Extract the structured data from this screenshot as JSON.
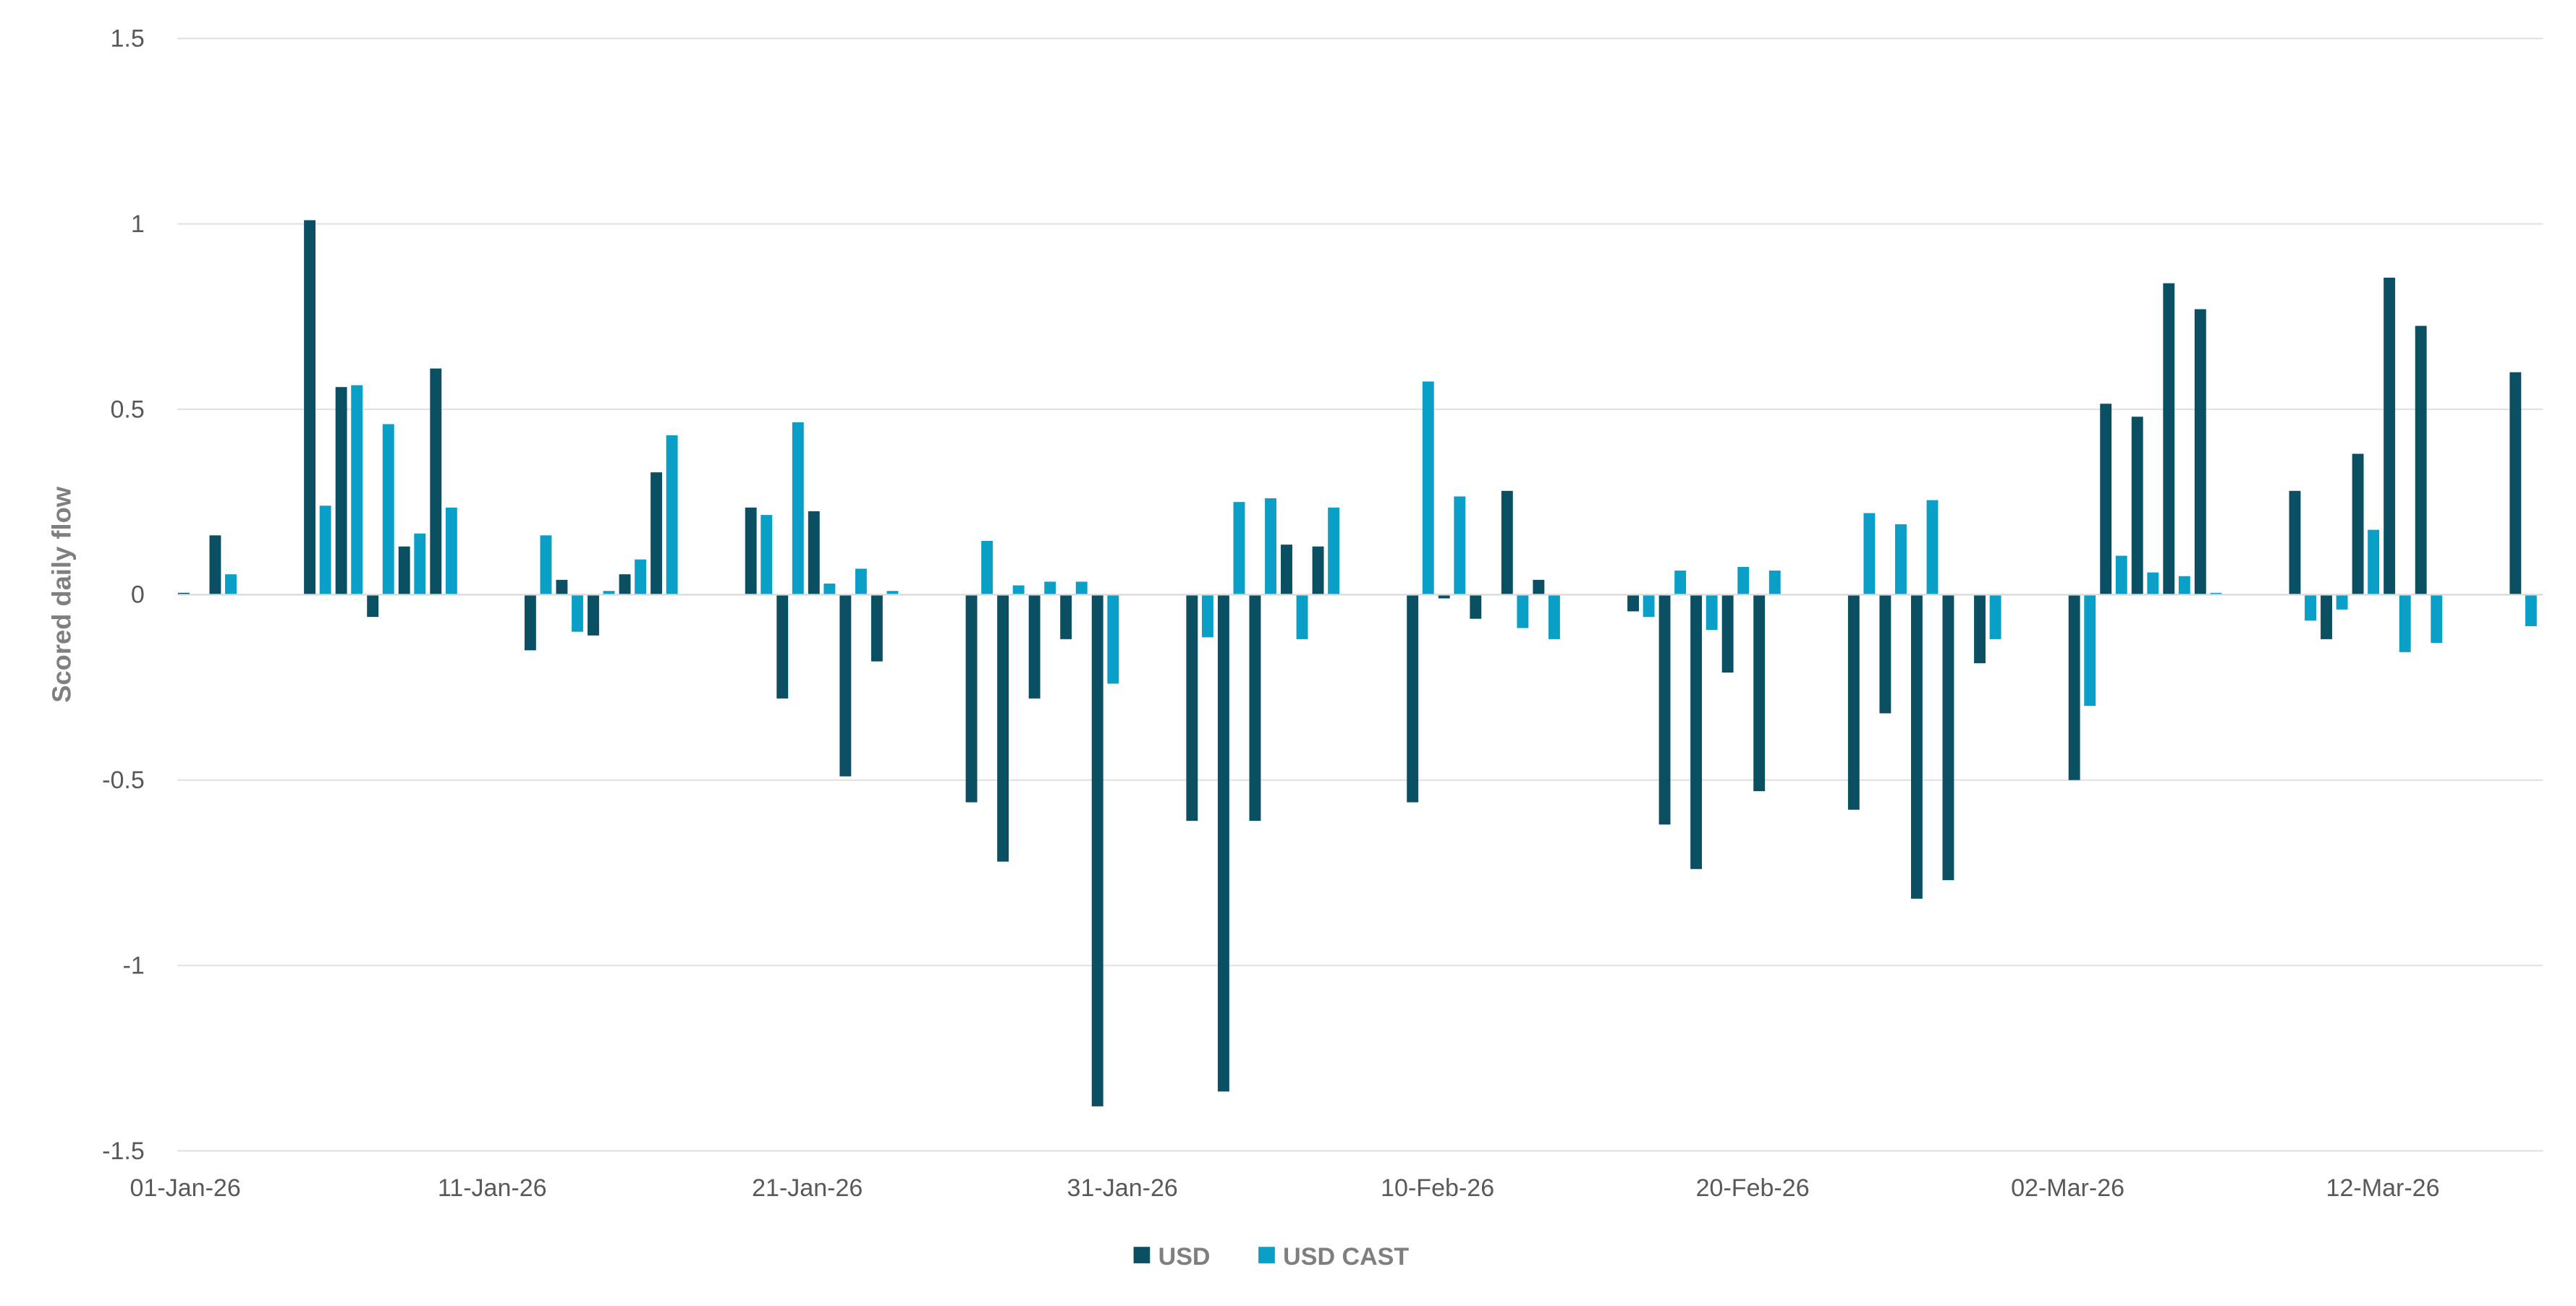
{
  "chart_data": {
    "type": "bar",
    "title": "",
    "xlabel": "",
    "ylabel": "Scored daily flow",
    "ylim": [
      -1.5,
      1.5
    ],
    "yticks": [
      "1.5",
      "1",
      "0.5",
      "0",
      "-0.5",
      "-1",
      "-1.5"
    ],
    "ytick_values": [
      1.5,
      1,
      0.5,
      0,
      -0.5,
      -1,
      -1.5
    ],
    "xtick_labels": [
      "01-Jan-26",
      "11-Jan-26",
      "21-Jan-26",
      "31-Jan-26",
      "10-Feb-26",
      "20-Feb-26",
      "02-Mar-26",
      "12-Mar-26"
    ],
    "xtick_days": [
      0,
      10,
      20,
      30,
      40,
      50,
      60,
      70
    ],
    "grid": true,
    "legend_position": "bottom",
    "day_offsets": [
      0,
      1,
      4,
      5,
      6,
      7,
      8,
      11,
      12,
      13,
      14,
      15,
      18,
      19,
      20,
      21,
      22,
      25,
      26,
      27,
      28,
      29,
      32,
      33,
      34,
      35,
      36,
      39,
      40,
      41,
      42,
      43,
      46,
      47,
      48,
      49,
      50,
      53,
      54,
      55,
      56,
      57,
      60,
      61,
      62,
      63,
      64,
      67,
      68,
      69,
      70,
      71,
      74
    ],
    "series": [
      {
        "name": "USD",
        "color": "#0b4f63",
        "values": [
          0.005,
          0.16,
          1.01,
          0.56,
          -0.06,
          0.13,
          0.61,
          -0.15,
          0.04,
          -0.11,
          0.055,
          0.33,
          0.235,
          -0.28,
          0.225,
          -0.49,
          -0.18,
          -0.56,
          -0.72,
          -0.28,
          -0.12,
          -1.38,
          -0.61,
          -1.34,
          -0.61,
          0.135,
          0.13,
          -0.56,
          -0.01,
          -0.065,
          0.28,
          0.04,
          -0.045,
          -0.62,
          -0.74,
          -0.21,
          -0.53,
          -0.58,
          -0.32,
          -0.82,
          -0.77,
          -0.185,
          -0.5,
          0.515,
          0.48,
          0.84,
          0.77,
          0.28,
          -0.12,
          0.38,
          0.855,
          0.725,
          0.6
        ]
      },
      {
        "name": "USD CAST",
        "color": "#0a9fc6",
        "values": [
          null,
          0.055,
          0.24,
          0.565,
          0.46,
          0.165,
          0.235,
          0.16,
          -0.1,
          0.01,
          0.095,
          0.43,
          0.215,
          0.465,
          0.03,
          0.07,
          0.01,
          0.145,
          0.025,
          0.035,
          0.035,
          -0.24,
          -0.115,
          0.25,
          0.26,
          -0.12,
          0.235,
          0.575,
          0.265,
          null,
          -0.09,
          -0.12,
          -0.06,
          0.065,
          -0.095,
          0.075,
          0.065,
          0.22,
          0.19,
          0.255,
          null,
          -0.12,
          -0.3,
          0.105,
          0.06,
          0.05,
          0.005,
          -0.07,
          -0.04,
          0.175,
          -0.155,
          -0.13,
          -0.085
        ]
      }
    ]
  }
}
